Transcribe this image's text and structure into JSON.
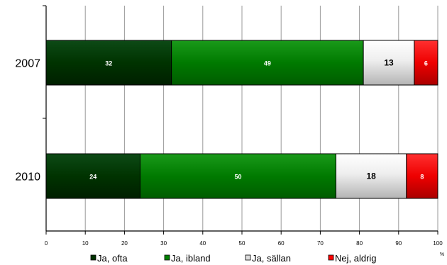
{
  "chart_data": {
    "type": "bar",
    "orientation": "horizontal",
    "stacked": true,
    "categories": [
      "2007",
      "2010"
    ],
    "series": [
      {
        "name": "Ja, ofta",
        "values": [
          32,
          24
        ],
        "color": "#003300",
        "gradient": "darkgreen-gradient",
        "label_color": "#ffffff"
      },
      {
        "name": "Ja, ibland",
        "values": [
          49,
          50
        ],
        "color": "#008000",
        "gradient": "green-gradient",
        "label_color": "#ffffff"
      },
      {
        "name": "Ja, sällan",
        "values": [
          13,
          18
        ],
        "color": "#dcdcdc",
        "gradient": "grey-gradient",
        "label_color": "#000000"
      },
      {
        "name": "Nej, aldrig",
        "values": [
          6,
          8
        ],
        "color": "#ff0000",
        "gradient": "red-gradient",
        "label_color": "#ffffff"
      }
    ],
    "data_labels": [
      [
        "32",
        "24"
      ],
      [
        "49",
        "50"
      ],
      [
        "13",
        "18"
      ],
      [
        "6",
        "8"
      ]
    ],
    "xlim": [
      0,
      100
    ],
    "xticks": [
      "0",
      "10",
      "20",
      "30",
      "40",
      "50",
      "60",
      "70",
      "80",
      "90",
      "100"
    ],
    "x_unit": "%",
    "grid": "vertical",
    "legend": "bottom"
  }
}
